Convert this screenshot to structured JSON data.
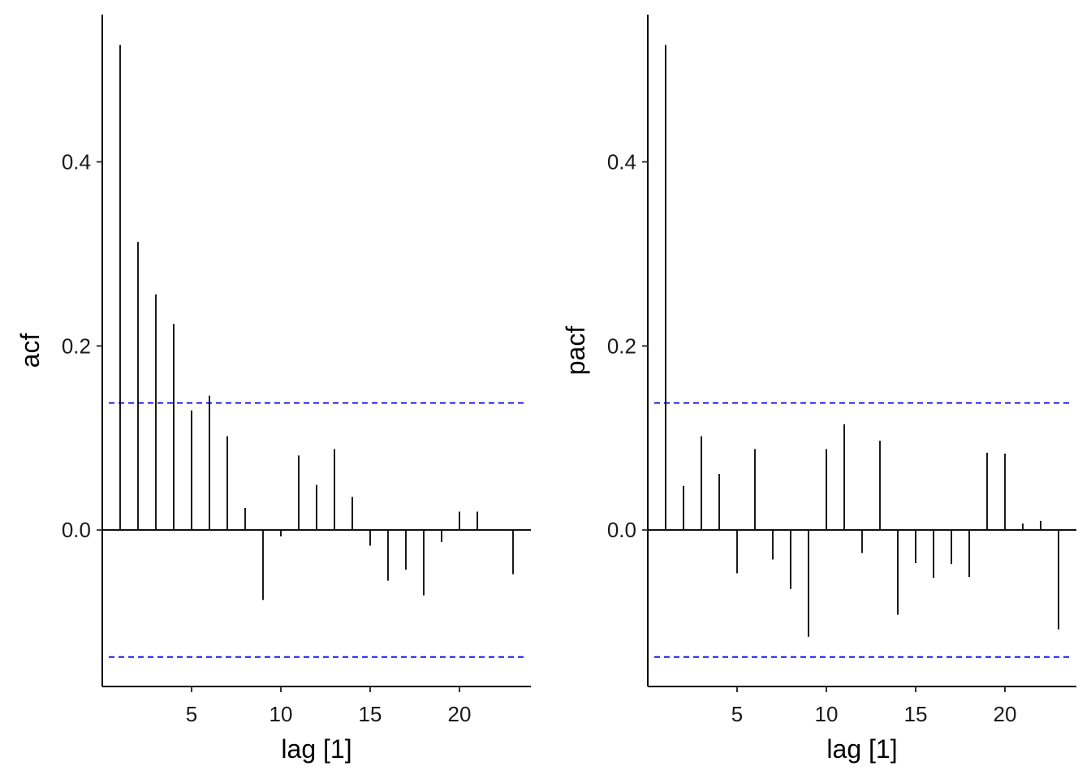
{
  "chart_data": [
    {
      "type": "bar",
      "ylabel": "acf",
      "xlabel": "lag [1]",
      "xlim": [
        0,
        24
      ],
      "ylim": [
        -0.17,
        0.56
      ],
      "xticks": [
        5,
        10,
        15,
        20
      ],
      "yticks": [
        0.0,
        0.2,
        0.4
      ],
      "ytick_labels": [
        "0.0",
        "0.2",
        "0.4"
      ],
      "xtick_labels": [
        "5",
        "10",
        "15",
        "20"
      ],
      "confidence_limit": 0.138,
      "confidence_color": "#0000ee",
      "bar_color": "#000000",
      "x": [
        1,
        2,
        3,
        4,
        5,
        6,
        7,
        8,
        9,
        10,
        11,
        12,
        13,
        14,
        15,
        16,
        17,
        18,
        19,
        20,
        21,
        22,
        23
      ],
      "values": [
        0.527,
        0.313,
        0.256,
        0.224,
        0.13,
        0.146,
        0.102,
        0.024,
        -0.076,
        -0.007,
        0.081,
        0.049,
        0.088,
        0.036,
        -0.017,
        -0.055,
        -0.043,
        -0.071,
        -0.013,
        0.02,
        0.02,
        0.0,
        -0.048
      ]
    },
    {
      "type": "bar",
      "ylabel": "pacf",
      "xlabel": "lag [1]",
      "xlim": [
        0,
        24
      ],
      "ylim": [
        -0.17,
        0.56
      ],
      "xticks": [
        5,
        10,
        15,
        20
      ],
      "yticks": [
        0.0,
        0.2,
        0.4
      ],
      "ytick_labels": [
        "0.0",
        "0.2",
        "0.4"
      ],
      "xtick_labels": [
        "5",
        "10",
        "15",
        "20"
      ],
      "confidence_limit": 0.138,
      "confidence_color": "#0000ee",
      "bar_color": "#000000",
      "x": [
        1,
        2,
        3,
        4,
        5,
        6,
        7,
        8,
        9,
        10,
        11,
        12,
        13,
        14,
        15,
        16,
        17,
        18,
        19,
        20,
        21,
        22,
        23
      ],
      "values": [
        0.527,
        0.048,
        0.102,
        0.061,
        -0.047,
        0.088,
        -0.032,
        -0.064,
        -0.116,
        0.088,
        0.115,
        -0.025,
        0.097,
        -0.092,
        -0.036,
        -0.052,
        -0.037,
        -0.051,
        0.084,
        0.083,
        0.007,
        0.01,
        -0.108
      ]
    }
  ]
}
